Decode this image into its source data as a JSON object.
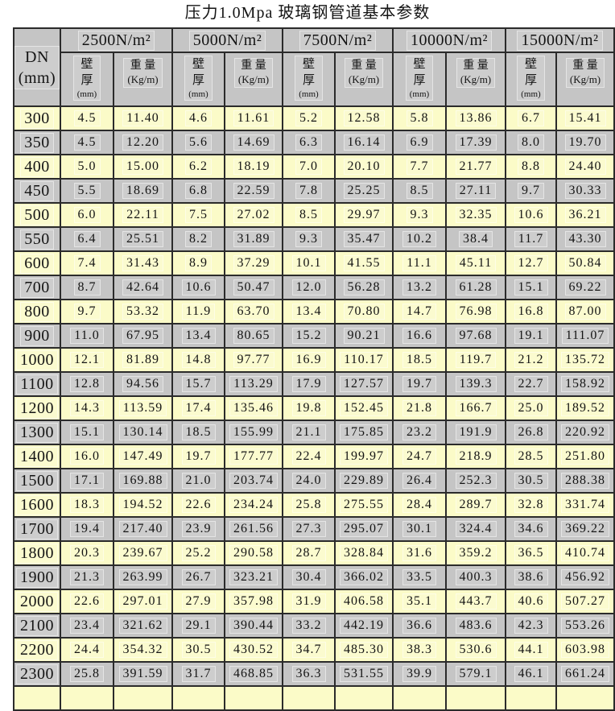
{
  "title": "压力1.0Mpa 玻璃钢管道基本参数",
  "colors": {
    "row_yellow": "#FBFBC8",
    "row_gray": "#C5C5C5",
    "header_gray": "#C5C5C5",
    "border": "#2B2B2B",
    "page_background": "#FFFFFF"
  },
  "chart_data": {
    "type": "table",
    "title": "压力1.0Mpa 玻璃钢管道基本参数",
    "corner_header": "DN\n(mm)",
    "load_groups": [
      "2500N/m²",
      "5000N/m²",
      "7500N/m²",
      "10000N/m²",
      "15000N/m²"
    ],
    "sub_headers": {
      "wall_cn": "壁\n厚",
      "wall_unit": "(mm)",
      "weight_cn": "重 量",
      "weight_unit": "(Kg/m)"
    },
    "rows": [
      {
        "dn": "300",
        "values": [
          "4.5",
          "11.40",
          "4.6",
          "11.61",
          "5.2",
          "12.58",
          "5.8",
          "13.86",
          "6.7",
          "15.41"
        ]
      },
      {
        "dn": "350",
        "values": [
          "4.5",
          "12.20",
          "5.6",
          "14.69",
          "6.3",
          "16.14",
          "6.9",
          "17.39",
          "8.0",
          "19.70"
        ]
      },
      {
        "dn": "400",
        "values": [
          "5.0",
          "15.00",
          "6.2",
          "18.19",
          "7.0",
          "20.10",
          "7.7",
          "21.77",
          "8.8",
          "24.40"
        ]
      },
      {
        "dn": "450",
        "values": [
          "5.5",
          "18.69",
          "6.8",
          "22.59",
          "7.8",
          "25.25",
          "8.5",
          "27.11",
          "9.7",
          "30.33"
        ]
      },
      {
        "dn": "500",
        "values": [
          "6.0",
          "22.11",
          "7.5",
          "27.02",
          "8.5",
          "29.97",
          "9.3",
          "32.35",
          "10.6",
          "36.21"
        ]
      },
      {
        "dn": "550",
        "values": [
          "6.4",
          "25.51",
          "8.2",
          "31.89",
          "9.3",
          "35.47",
          "10.2",
          "38.4",
          "11.7",
          "43.30"
        ]
      },
      {
        "dn": "600",
        "values": [
          "7.4",
          "31.43",
          "8.9",
          "37.29",
          "10.1",
          "41.55",
          "11.1",
          "45.11",
          "12.7",
          "50.84"
        ]
      },
      {
        "dn": "700",
        "values": [
          "8.7",
          "42.64",
          "10.6",
          "50.47",
          "12.0",
          "56.28",
          "13.2",
          "61.28",
          "15.1",
          "69.22"
        ]
      },
      {
        "dn": "800",
        "values": [
          "9.7",
          "53.32",
          "11.9",
          "63.70",
          "13.4",
          "70.80",
          "14.7",
          "76.98",
          "16.8",
          "87.00"
        ]
      },
      {
        "dn": "900",
        "values": [
          "11.0",
          "67.95",
          "13.4",
          "80.65",
          "15.2",
          "90.21",
          "16.6",
          "97.68",
          "19.1",
          "111.07"
        ]
      },
      {
        "dn": "1000",
        "values": [
          "12.1",
          "81.89",
          "14.8",
          "97.77",
          "16.9",
          "110.17",
          "18.5",
          "119.7",
          "21.2",
          "135.72"
        ]
      },
      {
        "dn": "1100",
        "values": [
          "12.8",
          "94.56",
          "15.7",
          "113.29",
          "17.9",
          "127.57",
          "19.7",
          "139.3",
          "22.7",
          "158.92"
        ]
      },
      {
        "dn": "1200",
        "values": [
          "14.3",
          "113.59",
          "17.4",
          "135.46",
          "19.8",
          "152.45",
          "21.8",
          "166.7",
          "25.0",
          "189.52"
        ]
      },
      {
        "dn": "1300",
        "values": [
          "15.1",
          "130.14",
          "18.5",
          "155.99",
          "21.1",
          "175.85",
          "23.2",
          "191.9",
          "26.8",
          "220.92"
        ]
      },
      {
        "dn": "1400",
        "values": [
          "16.0",
          "147.49",
          "19.7",
          "177.77",
          "22.4",
          "199.97",
          "24.7",
          "218.9",
          "28.5",
          "251.80"
        ]
      },
      {
        "dn": "1500",
        "values": [
          "17.1",
          "169.88",
          "21.0",
          "203.74",
          "24.0",
          "229.89",
          "26.4",
          "252.3",
          "30.5",
          "288.38"
        ]
      },
      {
        "dn": "1600",
        "values": [
          "18.3",
          "194.52",
          "22.6",
          "234.24",
          "25.8",
          "275.55",
          "28.4",
          "289.7",
          "32.8",
          "331.74"
        ]
      },
      {
        "dn": "1700",
        "values": [
          "19.4",
          "217.40",
          "23.9",
          "261.56",
          "27.3",
          "295.07",
          "30.1",
          "324.4",
          "34.6",
          "369.22"
        ]
      },
      {
        "dn": "1800",
        "values": [
          "20.3",
          "239.67",
          "25.2",
          "290.58",
          "28.7",
          "328.84",
          "31.6",
          "359.2",
          "36.5",
          "410.74"
        ]
      },
      {
        "dn": "1900",
        "values": [
          "21.3",
          "263.99",
          "26.7",
          "323.21",
          "30.4",
          "366.02",
          "33.5",
          "400.3",
          "38.6",
          "456.92"
        ]
      },
      {
        "dn": "2000",
        "values": [
          "22.6",
          "297.01",
          "27.9",
          "357.98",
          "31.9",
          "406.58",
          "35.1",
          "443.7",
          "40.6",
          "507.27"
        ]
      },
      {
        "dn": "2100",
        "values": [
          "23.4",
          "321.62",
          "29.1",
          "390.44",
          "33.2",
          "442.19",
          "36.6",
          "483.6",
          "42.3",
          "553.26"
        ]
      },
      {
        "dn": "2200",
        "values": [
          "24.4",
          "354.32",
          "30.5",
          "430.52",
          "34.7",
          "485.30",
          "38.3",
          "530.6",
          "44.1",
          "603.98"
        ]
      },
      {
        "dn": "2300",
        "values": [
          "25.8",
          "391.59",
          "31.7",
          "468.85",
          "36.3",
          "531.55",
          "39.9",
          "579.1",
          "46.1",
          "661.24"
        ]
      }
    ],
    "partial_row_visible": true
  }
}
